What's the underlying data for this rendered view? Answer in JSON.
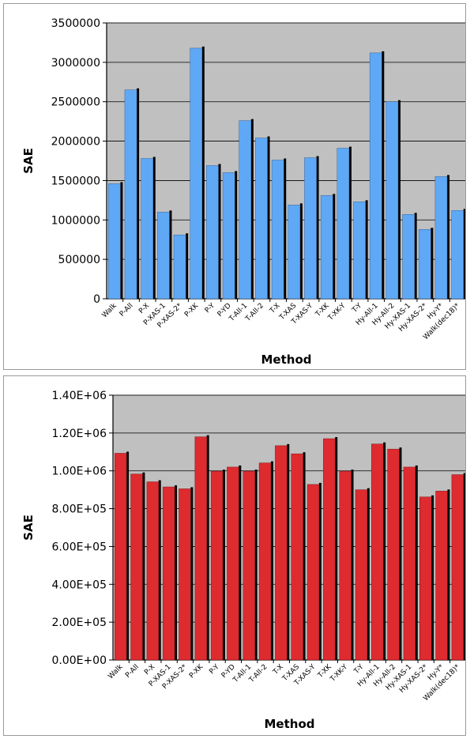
{
  "chart_data": [
    {
      "type": "bar",
      "title": "",
      "xlabel": "Method",
      "ylabel": "SAE",
      "ylim": [
        0,
        3500000
      ],
      "yticks": [
        "0",
        "500000",
        "1000000",
        "1500000",
        "2000000",
        "2500000",
        "3000000",
        "3500000"
      ],
      "grid": true,
      "categories": [
        "Walk",
        "P-All",
        "P-X",
        "P-XAS-1",
        "P-XAS-2*",
        "P-XK",
        "P-Y",
        "P-YD",
        "T-All-1",
        "T-All-2",
        "T-X",
        "T-XAS",
        "T-XAS-Y",
        "T-XK",
        "T-XK-Y",
        "T-Y",
        "Hy-All-1",
        "Hy-All-2",
        "Hy-XAS-1",
        "Hy-XAS-2*",
        "Hy-Y*",
        "Walk(dec18)*"
      ],
      "values": [
        1460000,
        2650000,
        1780000,
        1100000,
        810000,
        3180000,
        1690000,
        1600000,
        2260000,
        2040000,
        1760000,
        1190000,
        1790000,
        1310000,
        1910000,
        1230000,
        3120000,
        2500000,
        1070000,
        880000,
        1550000,
        1120000
      ],
      "bar_color": "#5fa8f6",
      "plot_bg": "#c0c0c0"
    },
    {
      "type": "bar",
      "title": "",
      "xlabel": "Method",
      "ylabel": "SAE",
      "ylim": [
        0,
        1400000
      ],
      "yticks": [
        "0.00E+00",
        "2.00E+05",
        "4.00E+05",
        "6.00E+05",
        "8.00E+05",
        "1.00E+06",
        "1.20E+06",
        "1.40E+06"
      ],
      "grid": true,
      "categories": [
        "Walk",
        "P-All",
        "P-X",
        "P-XAS-1",
        "P-XAS-2*",
        "P-XK",
        "P-Y",
        "P-YD",
        "T-All-1",
        "T-All-2",
        "T-X",
        "T-XAS",
        "T-XAS-Y",
        "T-XK",
        "T-XK-Y",
        "T-Y",
        "Hy-All-1",
        "Hy-All-2",
        "Hy-XAS-1",
        "Hy-XAS-2*",
        "Hy-Y*",
        "Walk(dec18)*"
      ],
      "values": [
        1093000,
        983000,
        942000,
        915000,
        905000,
        1180000,
        998000,
        1020000,
        998000,
        1042000,
        1133000,
        1090000,
        928000,
        1170000,
        998000,
        900000,
        1142000,
        1115000,
        1020000,
        862000,
        893000,
        980000
      ],
      "bar_color": "#dd2b2f",
      "plot_bg": "#c0c0c0"
    }
  ]
}
